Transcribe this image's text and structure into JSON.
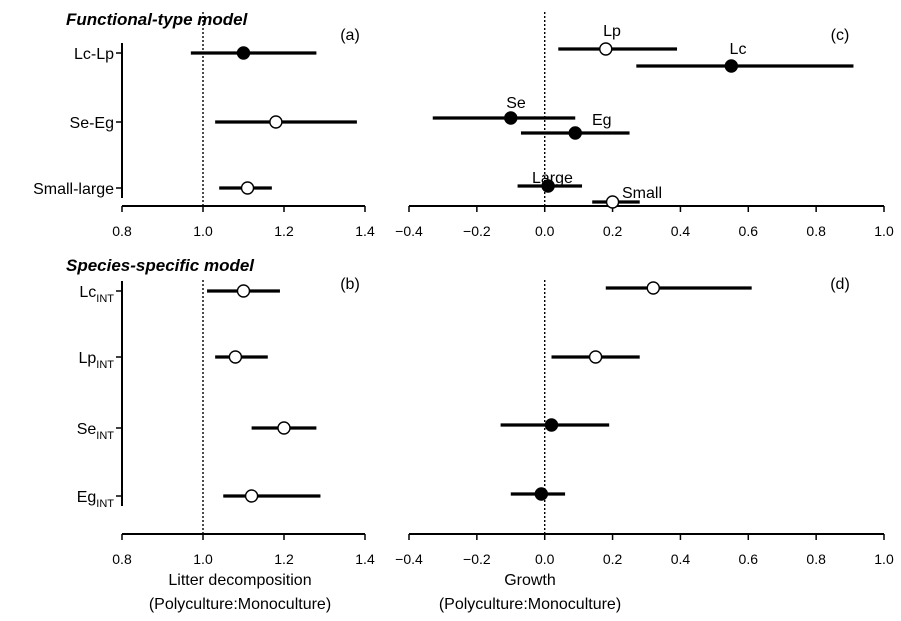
{
  "sections": {
    "top": "Functional-type model",
    "bottom": "Species-specific model"
  },
  "xlabels": {
    "left_line1": "Litter decomposition",
    "left_line2": "(Polyculture:Monoculture)",
    "right_line1": "Growth",
    "right_line2": "(Polyculture:Monoculture)"
  },
  "chart_data": [
    {
      "panel": "(a)",
      "type": "scatter",
      "xlim": [
        0.8,
        1.4
      ],
      "xticks": [
        "0.8",
        "1.0",
        "1.2",
        "1.4"
      ],
      "reference_line": 1.0,
      "categories": [
        {
          "label": "Lc-Lp",
          "sub": "",
          "value": 1.1,
          "lo": 0.97,
          "hi": 1.28,
          "filled": true
        },
        {
          "label": "Se-Eg",
          "sub": "",
          "value": 1.18,
          "lo": 1.03,
          "hi": 1.38,
          "filled": false
        },
        {
          "label": "Small-large",
          "sub": "",
          "value": 1.11,
          "lo": 1.04,
          "hi": 1.17,
          "filled": false
        }
      ]
    },
    {
      "panel": "(c)",
      "type": "scatter",
      "xlim": [
        -0.4,
        1.0
      ],
      "xticks": [
        "−0.4",
        "−0.2",
        "0.0",
        "0.2",
        "0.4",
        "0.6",
        "0.8",
        "1.0"
      ],
      "reference_line": 0.0,
      "points": [
        {
          "label": "Lp",
          "value": 0.18,
          "lo": 0.04,
          "hi": 0.39,
          "filled": false
        },
        {
          "label": "Lc",
          "value": 0.55,
          "lo": 0.27,
          "hi": 0.91,
          "filled": true
        },
        {
          "label": "Se",
          "value": -0.1,
          "lo": -0.33,
          "hi": 0.09,
          "filled": true
        },
        {
          "label": "Eg",
          "value": 0.09,
          "lo": -0.07,
          "hi": 0.25,
          "filled": true
        },
        {
          "label": "Large",
          "value": 0.01,
          "lo": -0.08,
          "hi": 0.11,
          "filled": true
        },
        {
          "label": "Small",
          "value": 0.2,
          "lo": 0.14,
          "hi": 0.28,
          "filled": false
        }
      ]
    },
    {
      "panel": "(b)",
      "type": "scatter",
      "xlim": [
        0.8,
        1.4
      ],
      "xticks": [
        "0.8",
        "1.0",
        "1.2",
        "1.4"
      ],
      "reference_line": 1.0,
      "categories": [
        {
          "label": "Lc",
          "sub": "INT",
          "value": 1.1,
          "lo": 1.01,
          "hi": 1.19,
          "filled": false
        },
        {
          "label": "Lp",
          "sub": "INT",
          "value": 1.08,
          "lo": 1.03,
          "hi": 1.16,
          "filled": false
        },
        {
          "label": "Se",
          "sub": "INT",
          "value": 1.2,
          "lo": 1.12,
          "hi": 1.28,
          "filled": false
        },
        {
          "label": "Eg",
          "sub": "INT",
          "value": 1.12,
          "lo": 1.05,
          "hi": 1.29,
          "filled": false
        }
      ]
    },
    {
      "panel": "(d)",
      "type": "scatter",
      "xlim": [
        -0.4,
        1.0
      ],
      "xticks": [
        "−0.4",
        "−0.2",
        "0.0",
        "0.2",
        "0.4",
        "0.6",
        "0.8",
        "1.0"
      ],
      "reference_line": 0.0,
      "categories": [
        {
          "label": "Lc",
          "sub": "INT",
          "value": 0.32,
          "lo": 0.18,
          "hi": 0.61,
          "filled": false
        },
        {
          "label": "Lp",
          "sub": "INT",
          "value": 0.15,
          "lo": 0.02,
          "hi": 0.28,
          "filled": false
        },
        {
          "label": "Se",
          "sub": "INT",
          "value": 0.02,
          "lo": -0.13,
          "hi": 0.19,
          "filled": true
        },
        {
          "label": "Eg",
          "sub": "INT",
          "value": -0.01,
          "lo": -0.1,
          "hi": 0.06,
          "filled": true
        }
      ]
    }
  ]
}
